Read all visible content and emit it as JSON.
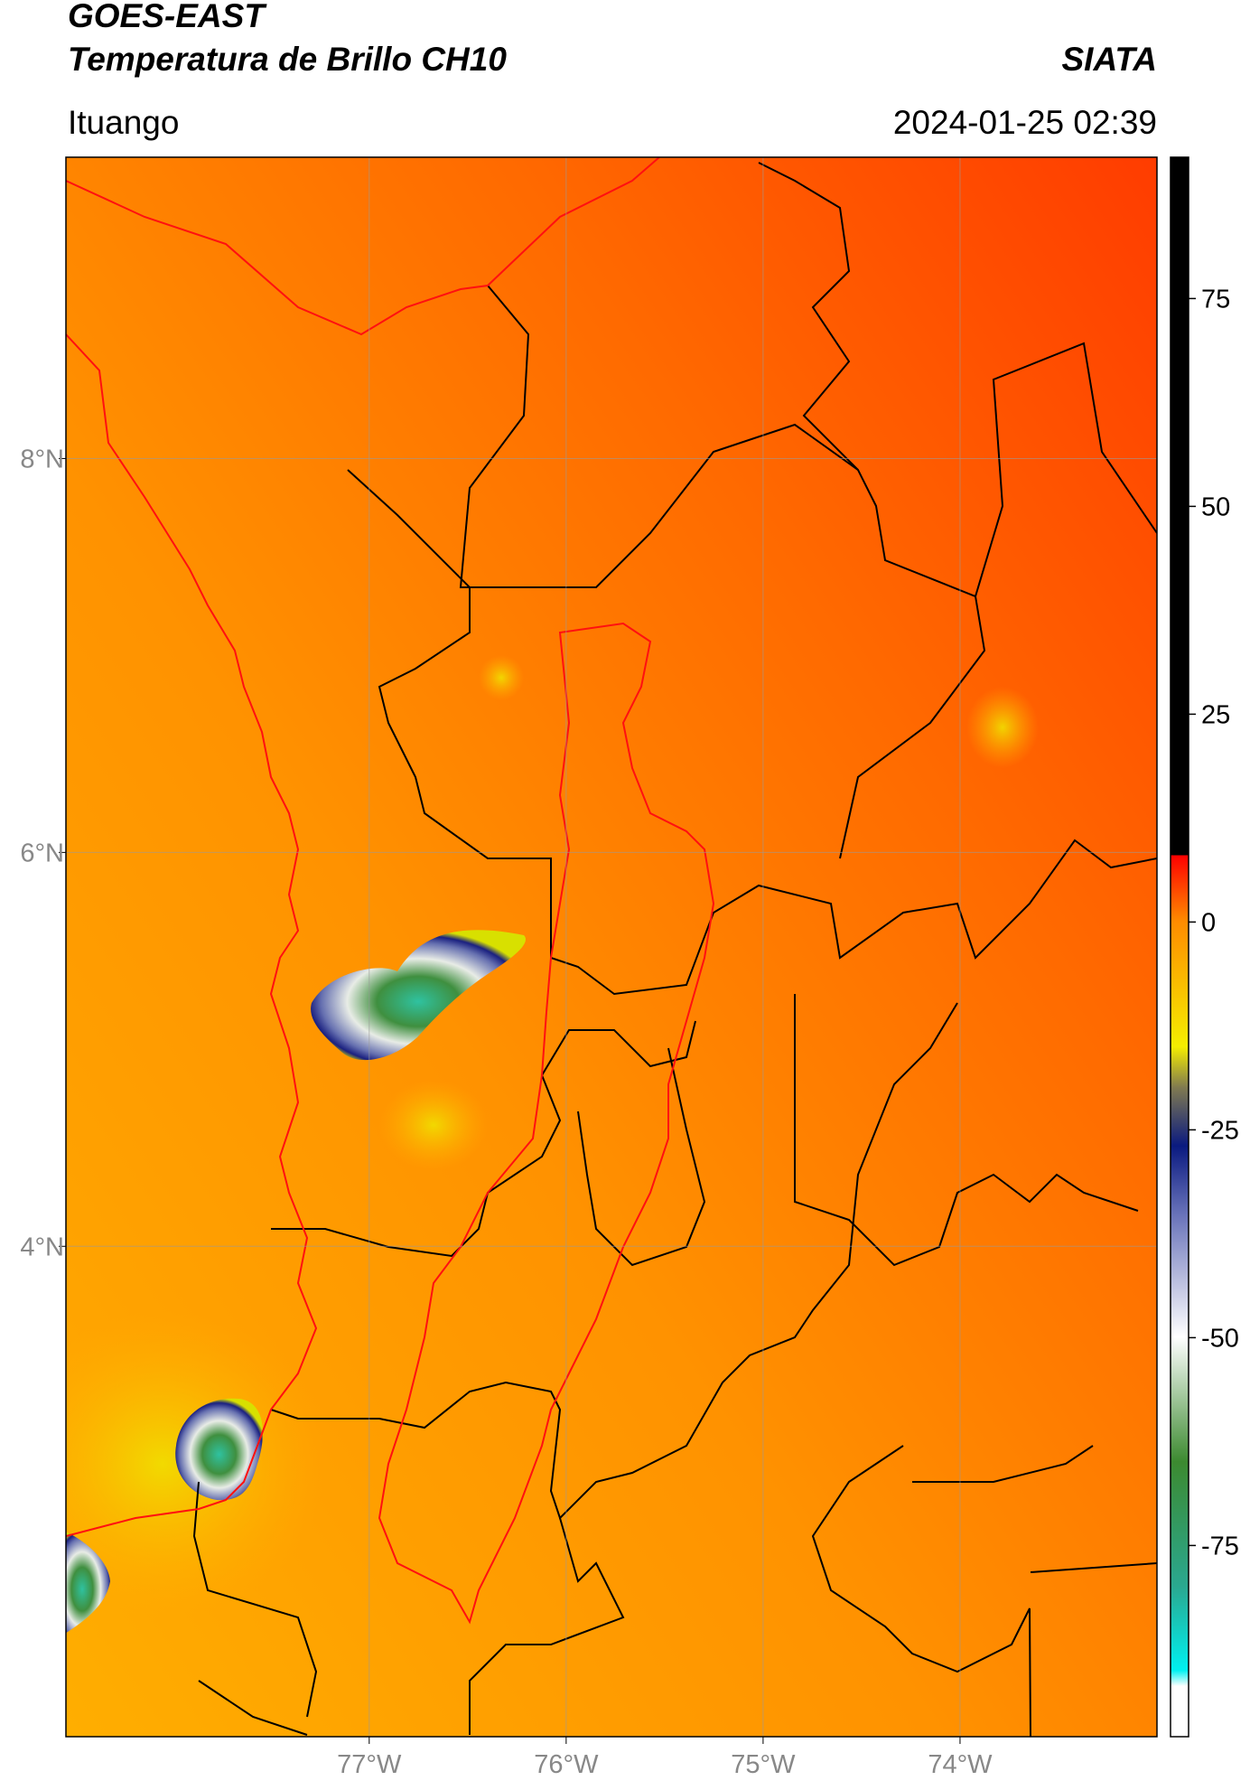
{
  "header": {
    "title": "GOES-EAST",
    "subtitle": "Temperatura de Brillo CH10",
    "source": "SIATA",
    "location": "Ituango",
    "timestamp": "2024-01-25 02:39"
  },
  "map": {
    "xlim": [
      -78.54,
      -73.0
    ],
    "ylim": [
      1.51,
      9.53
    ],
    "xticks": [
      {
        "value": -77,
        "label": "77°W"
      },
      {
        "value": -76,
        "label": "76°W"
      },
      {
        "value": -75,
        "label": "75°W"
      },
      {
        "value": -74,
        "label": "74°W"
      }
    ],
    "yticks": [
      {
        "value": 4,
        "label": "4°N"
      },
      {
        "value": 6,
        "label": "6°N"
      },
      {
        "value": 8,
        "label": "8°N"
      }
    ],
    "grid": true
  },
  "colorbar": {
    "ylim": [
      -98,
      92
    ],
    "yticks": [
      -75,
      -50,
      -25,
      0,
      25,
      50,
      75
    ]
  }
}
